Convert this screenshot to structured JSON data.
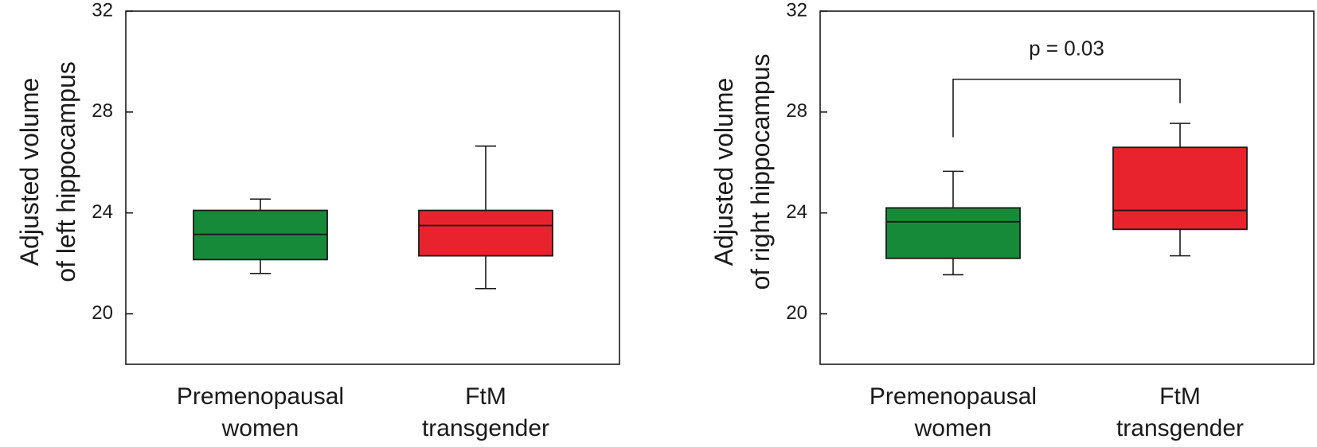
{
  "chart_data": [
    {
      "type": "box",
      "ylabel_lines": [
        "Adjusted volume",
        "of left hippocampus"
      ],
      "ylim": [
        18,
        32
      ],
      "yticks": [
        20,
        24,
        28,
        32
      ],
      "categories": [
        {
          "lines": [
            "Premenopausal",
            "women"
          ]
        },
        {
          "lines": [
            "FtM",
            "transgender"
          ]
        }
      ],
      "boxes": [
        {
          "whisker_low": 21.6,
          "q1": 22.15,
          "median": 23.15,
          "q3": 24.1,
          "whisker_high": 24.55,
          "color": "#178a3a"
        },
        {
          "whisker_low": 21.0,
          "q1": 22.3,
          "median": 23.5,
          "q3": 24.1,
          "whisker_high": 26.65,
          "color": "#e8232d"
        }
      ],
      "annotation": null,
      "grid": false,
      "legend": "none"
    },
    {
      "type": "box",
      "ylabel_lines": [
        "Adjusted volume",
        "of right hippocampus"
      ],
      "ylim": [
        18,
        32
      ],
      "yticks": [
        20,
        24,
        28,
        32
      ],
      "categories": [
        {
          "lines": [
            "Premenopausal",
            "women"
          ]
        },
        {
          "lines": [
            "FtM",
            "transgender"
          ]
        }
      ],
      "boxes": [
        {
          "whisker_low": 21.55,
          "q1": 22.2,
          "median": 23.65,
          "q3": 24.2,
          "whisker_high": 25.65,
          "color": "#178a3a"
        },
        {
          "whisker_low": 22.3,
          "q1": 23.35,
          "median": 24.1,
          "q3": 26.6,
          "whisker_high": 27.55,
          "color": "#e8232d"
        }
      ],
      "annotation": {
        "text": "p = 0.03",
        "bracket_from": 0,
        "bracket_to": 1,
        "bracket_y": 29.3,
        "left_leg_bottom": 27.0,
        "right_leg_bottom": 28.35
      },
      "grid": false,
      "legend": "none"
    }
  ]
}
